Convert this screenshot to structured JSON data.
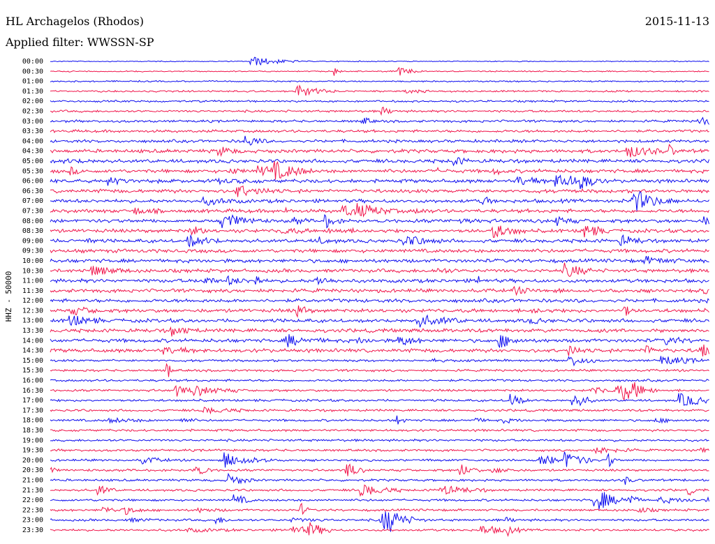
{
  "header": {
    "station": "HL Archagelos (Rhodos)",
    "date": "2015-11-13",
    "filter": "Applied filter: WWSSN-SP"
  },
  "axis_label": "HHZ - 50000",
  "rows": [
    "00:00",
    "00:30",
    "01:00",
    "01:30",
    "02:00",
    "02:30",
    "03:00",
    "03:30",
    "04:00",
    "04:30",
    "05:00",
    "05:30",
    "06:00",
    "06:30",
    "07:00",
    "07:30",
    "08:00",
    "08:30",
    "09:00",
    "09:30",
    "10:00",
    "10:30",
    "11:00",
    "11:30",
    "12:00",
    "12:30",
    "13:00",
    "13:30",
    "14:00",
    "14:30",
    "15:00",
    "15:30",
    "16:00",
    "16:30",
    "17:00",
    "17:30",
    "18:00",
    "18:30",
    "19:00",
    "19:30",
    "20:00",
    "20:30",
    "21:00",
    "21:30",
    "22:00",
    "22:30",
    "23:00",
    "23:30"
  ]
}
